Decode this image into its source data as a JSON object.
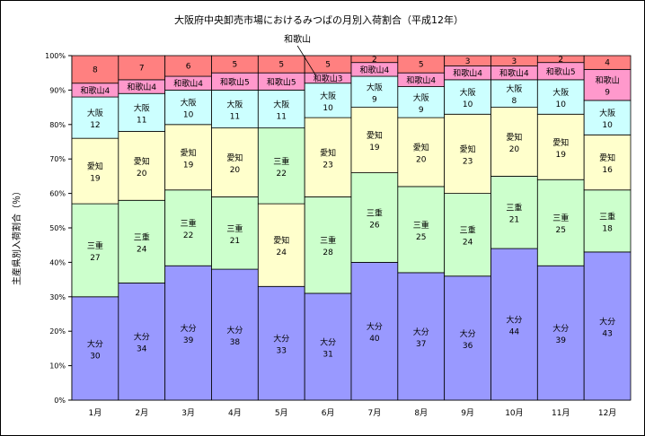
{
  "chart_data": {
    "type": "bar",
    "stacked": true,
    "title": "大阪府中央卸売市場におけるみつばの月別入荷割合（平成12年）",
    "ylabel": "主産県別入荷割合（％）",
    "xlabel": "",
    "ylim": [
      0,
      100
    ],
    "yticks": [
      "0%",
      "10%",
      "20%",
      "30%",
      "40%",
      "50%",
      "60%",
      "70%",
      "80%",
      "90%",
      "100%"
    ],
    "categories": [
      "1月",
      "2月",
      "3月",
      "4月",
      "5月",
      "6月",
      "7月",
      "8月",
      "9月",
      "10月",
      "11月",
      "12月"
    ],
    "grid": false,
    "legend": "none",
    "colors": {
      "大分": "#9999ff",
      "三重": "#ccffcc",
      "愛知": "#ffffcc",
      "大阪": "#ccffff",
      "和歌山": "#ff99cc",
      "その他": "#ff8080"
    },
    "bars": [
      {
        "segments": [
          {
            "name": "大分",
            "value": 30
          },
          {
            "name": "三重",
            "value": 27
          },
          {
            "name": "愛知",
            "value": 19
          },
          {
            "name": "大阪",
            "value": 12
          },
          {
            "name": "和歌山",
            "value": 4
          },
          {
            "name": "その他",
            "value": 8
          }
        ]
      },
      {
        "segments": [
          {
            "name": "大分",
            "value": 34
          },
          {
            "name": "三重",
            "value": 24
          },
          {
            "name": "愛知",
            "value": 20
          },
          {
            "name": "大阪",
            "value": 11
          },
          {
            "name": "和歌山",
            "value": 4
          },
          {
            "name": "その他",
            "value": 7
          }
        ]
      },
      {
        "segments": [
          {
            "name": "大分",
            "value": 39
          },
          {
            "name": "三重",
            "value": 22
          },
          {
            "name": "愛知",
            "value": 19
          },
          {
            "name": "大阪",
            "value": 10
          },
          {
            "name": "和歌山",
            "value": 4
          },
          {
            "name": "その他",
            "value": 6
          }
        ]
      },
      {
        "segments": [
          {
            "name": "大分",
            "value": 38
          },
          {
            "name": "三重",
            "value": 21
          },
          {
            "name": "愛知",
            "value": 20
          },
          {
            "name": "大阪",
            "value": 11
          },
          {
            "name": "和歌山",
            "value": 5
          },
          {
            "name": "その他",
            "value": 5
          }
        ]
      },
      {
        "segments": [
          {
            "name": "大分",
            "value": 33
          },
          {
            "name": "愛知",
            "value": 24
          },
          {
            "name": "三重",
            "value": 22
          },
          {
            "name": "大阪",
            "value": 11
          },
          {
            "name": "和歌山",
            "value": 5
          },
          {
            "name": "その他",
            "value": 5
          }
        ]
      },
      {
        "segments": [
          {
            "name": "大分",
            "value": 31
          },
          {
            "name": "三重",
            "value": 28
          },
          {
            "name": "愛知",
            "value": 23
          },
          {
            "name": "大阪",
            "value": 10
          },
          {
            "name": "和歌山",
            "value": 3
          },
          {
            "name": "その他",
            "value": 5
          }
        ]
      },
      {
        "segments": [
          {
            "name": "大分",
            "value": 40
          },
          {
            "name": "三重",
            "value": 26
          },
          {
            "name": "愛知",
            "value": 19
          },
          {
            "name": "大阪",
            "value": 9
          },
          {
            "name": "和歌山",
            "value": 4
          },
          {
            "name": "その他",
            "value": 2
          }
        ]
      },
      {
        "segments": [
          {
            "name": "大分",
            "value": 37
          },
          {
            "name": "三重",
            "value": 25
          },
          {
            "name": "愛知",
            "value": 20
          },
          {
            "name": "大阪",
            "value": 9
          },
          {
            "name": "和歌山",
            "value": 4
          },
          {
            "name": "その他",
            "value": 5
          }
        ]
      },
      {
        "segments": [
          {
            "name": "大分",
            "value": 36
          },
          {
            "name": "三重",
            "value": 24
          },
          {
            "name": "愛知",
            "value": 23
          },
          {
            "name": "大阪",
            "value": 10
          },
          {
            "name": "和歌山",
            "value": 4
          },
          {
            "name": "その他",
            "value": 3
          }
        ]
      },
      {
        "segments": [
          {
            "name": "大分",
            "value": 44
          },
          {
            "name": "三重",
            "value": 21
          },
          {
            "name": "愛知",
            "value": 20
          },
          {
            "name": "大阪",
            "value": 8
          },
          {
            "name": "和歌山",
            "value": 4
          },
          {
            "name": "その他",
            "value": 3
          }
        ]
      },
      {
        "segments": [
          {
            "name": "大分",
            "value": 39
          },
          {
            "name": "三重",
            "value": 25
          },
          {
            "name": "愛知",
            "value": 19
          },
          {
            "name": "大阪",
            "value": 10
          },
          {
            "name": "和歌山",
            "value": 5
          },
          {
            "name": "その他",
            "value": 2
          }
        ]
      },
      {
        "segments": [
          {
            "name": "大分",
            "value": 43
          },
          {
            "name": "三重",
            "value": 18
          },
          {
            "name": "愛知",
            "value": 16
          },
          {
            "name": "大阪",
            "value": 10
          },
          {
            "name": "和歌山",
            "value": 9
          },
          {
            "name": "その他",
            "value": 4
          }
        ]
      }
    ],
    "annotations": [
      {
        "text": "和歌山",
        "category": "6月"
      }
    ]
  }
}
